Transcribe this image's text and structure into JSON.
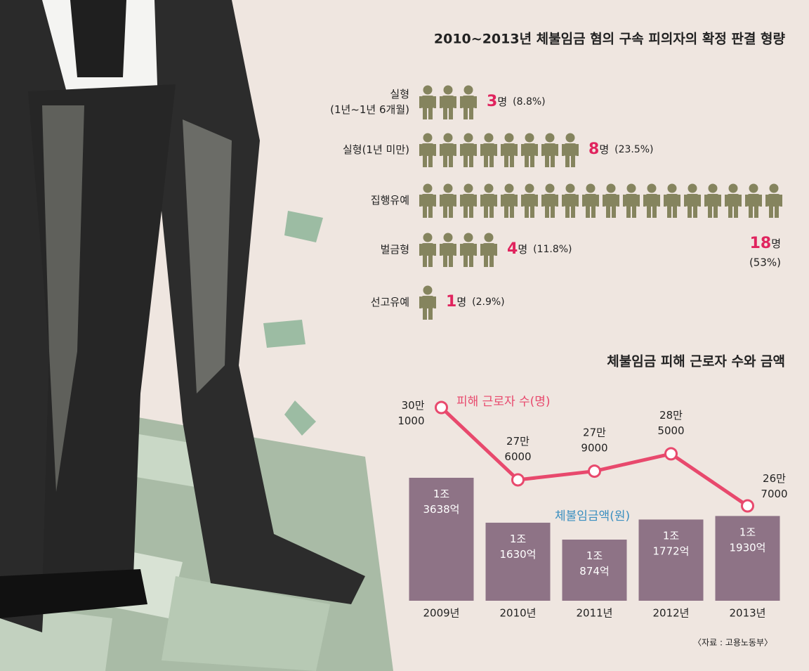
{
  "chart_data": [
    {
      "type": "pictogram",
      "title": "2010~2013년 체불임금 혐의 구속 피의자의 확정 판결 형량",
      "categories": [
        "실형\n(1년~1년 6개월)",
        "실형(1년 미만)",
        "집행유예",
        "벌금형",
        "선고유예"
      ],
      "values": [
        3,
        8,
        18,
        4,
        1
      ],
      "unit": "명",
      "shares": [
        8.8,
        23.5,
        53,
        11.8,
        2.9
      ],
      "share_labels": [
        "(8.8%)",
        "(23.5%)",
        "(53%)",
        "(11.8%)",
        "(2.9%)"
      ],
      "color": "#85845e"
    },
    {
      "type": "bar-line",
      "title": "체불임금 피해 근로자 수와 금액",
      "categories": [
        "2009년",
        "2010년",
        "2011년",
        "2012년",
        "2013년"
      ],
      "series": [
        {
          "name": "체불임금액(원)",
          "type": "bar",
          "color": "#8e7386",
          "values": [
            1363800000000,
            1163000000000,
            1087400000000,
            1177200000000,
            1193000000000
          ],
          "value_labels": [
            "1조\n3638억",
            "1조\n1630억",
            "1조\n874억",
            "1조\n1772억",
            "1조\n1930억"
          ]
        },
        {
          "name": "피해 근로자 수(명)",
          "type": "line",
          "color": "#e8496d",
          "values": [
            301000,
            276000,
            279000,
            285000,
            267000
          ],
          "value_labels": [
            "30만\n1000",
            "27만\n6000",
            "27만\n9000",
            "28만\n5000",
            "26만\n7000"
          ]
        }
      ],
      "source": "〈자료 : 고용노동부〉"
    }
  ]
}
